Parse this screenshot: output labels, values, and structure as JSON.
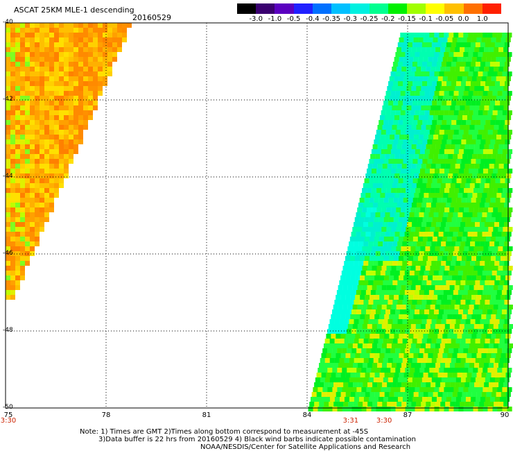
{
  "header": {
    "title": "ASCAT 25KM MLE-1 descending",
    "date": "20160529"
  },
  "colorbar": {
    "labels": [
      "-3.0",
      "-1.0",
      "-0.5",
      "-0.4",
      "-0.35",
      "-0.3",
      "-0.25",
      "-0.2",
      "-0.15",
      "-0.1",
      "-0.05",
      "0.0",
      "1.0"
    ],
    "colors": [
      "#000000",
      "#3a0070",
      "#5a00c0",
      "#2020ff",
      "#0070ff",
      "#00c0ff",
      "#00f0e0",
      "#00ff90",
      "#00f000",
      "#a0ff00",
      "#ffff00",
      "#ffc000",
      "#ff7000",
      "#ff2000"
    ]
  },
  "map": {
    "lon_range": [
      75,
      90
    ],
    "lat_range": [
      -40,
      -50
    ],
    "y_ticks": [
      "-40",
      "-42",
      "-44",
      "-46",
      "-48",
      "-50"
    ],
    "x_ticks": [
      "75",
      "78",
      "81",
      "84",
      "87",
      "90"
    ],
    "time_ticks": [
      {
        "lon": 75,
        "label": "3:30"
      },
      {
        "lon": 85.3,
        "label": "3:31"
      },
      {
        "lon": 86.3,
        "label": "3:30"
      }
    ]
  },
  "notes": {
    "line1": "Note: 1) Times are GMT 2)Times along bottom correspond to measurement at -45S",
    "line2": "3)Data buffer is 22 hrs from 20160529 4) Black wind barbs indicate possible contamination",
    "line3": "NOAA/NESDIS/Center for Satellite Applications and Research"
  }
}
